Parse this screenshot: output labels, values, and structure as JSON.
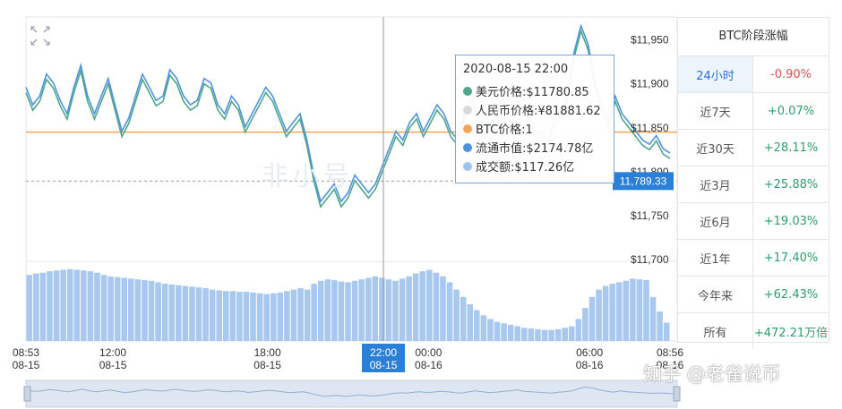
{
  "chart_data": {
    "type": "line",
    "series": [
      {
        "name": "美元价格",
        "color": "#4da888"
      },
      {
        "name": "人民币价格",
        "color": "#d0d0d0"
      },
      {
        "name": "BTC价格",
        "color": "#f5a55a"
      },
      {
        "name": "流通市值",
        "color": "#4f93e0"
      },
      {
        "name": "成交额",
        "color": "#9fc3ee"
      }
    ],
    "time_points": [
      "2020-08-15 08:53",
      "2020-08-15 12:00",
      "2020-08-15 18:00",
      "2020-08-15 22:00",
      "2020-08-16 00:00",
      "2020-08-16 06:00",
      "2020-08-16 08:56"
    ],
    "price_usd": [
      11890,
      11870,
      11880,
      11905,
      11895,
      11875,
      11860,
      11890,
      11915,
      11880,
      11860,
      11880,
      11900,
      11870,
      11840,
      11855,
      11880,
      11905,
      11890,
      11875,
      11880,
      11910,
      11900,
      11880,
      11870,
      11875,
      11900,
      11895,
      11870,
      11860,
      11880,
      11870,
      11845,
      11860,
      11875,
      11890,
      11880,
      11860,
      11840,
      11850,
      11860,
      11830,
      11790,
      11760,
      11770,
      11780,
      11760,
      11770,
      11790,
      11780,
      11770,
      11780,
      11800,
      11820,
      11840,
      11830,
      11850,
      11860,
      11840,
      11855,
      11870,
      11860,
      11840,
      11830,
      11860,
      11880,
      11860,
      11840,
      11850,
      11870,
      11880,
      11900,
      11870,
      11860,
      11850,
      11840,
      11830,
      11850,
      11860,
      11880,
      11930,
      11960,
      11940,
      11900,
      11870,
      11850,
      11880,
      11860,
      11850,
      11840,
      11830,
      11825,
      11835,
      11820,
      11815
    ],
    "usd_axis_ticks": [
      "$11,950",
      "$11,900",
      "$11,850",
      "$11,800",
      "$11,750",
      "$11,700"
    ],
    "usd_ylim": [
      11700,
      11970
    ],
    "reference_line_usd": 11845,
    "current_price_label": "11,789.33",
    "current_price_value": 11789.33,
    "volume": [
      0.9,
      0.92,
      0.93,
      0.95,
      0.96,
      0.97,
      0.98,
      0.97,
      0.96,
      0.95,
      0.93,
      0.9,
      0.88,
      0.87,
      0.86,
      0.85,
      0.84,
      0.83,
      0.82,
      0.8,
      0.78,
      0.77,
      0.76,
      0.75,
      0.74,
      0.73,
      0.72,
      0.7,
      0.69,
      0.68,
      0.68,
      0.67,
      0.67,
      0.66,
      0.65,
      0.64,
      0.65,
      0.66,
      0.68,
      0.7,
      0.72,
      0.7,
      0.78,
      0.82,
      0.84,
      0.83,
      0.81,
      0.8,
      0.82,
      0.84,
      0.86,
      0.88,
      0.86,
      0.84,
      0.82,
      0.85,
      0.88,
      0.92,
      0.95,
      0.97,
      0.93,
      0.88,
      0.8,
      0.7,
      0.6,
      0.5,
      0.42,
      0.35,
      0.3,
      0.26,
      0.24,
      0.22,
      0.2,
      0.18,
      0.17,
      0.16,
      0.15,
      0.15,
      0.16,
      0.18,
      0.2,
      0.3,
      0.45,
      0.6,
      0.7,
      0.75,
      0.78,
      0.8,
      0.82,
      0.85,
      0.84,
      0.83,
      0.6,
      0.4,
      0.25
    ],
    "x_labels": [
      {
        "time": "08:53",
        "date": "08-15"
      },
      {
        "time": "12:00",
        "date": "08-15"
      },
      {
        "time": "18:00",
        "date": "08-15"
      },
      {
        "time": "00:00",
        "date": "08-16"
      },
      {
        "time": "06:00",
        "date": "08-16"
      },
      {
        "time": "08:56",
        "date": "08-16"
      }
    ],
    "highlight_x_label": {
      "time": "22:00",
      "date": "08-15"
    },
    "cursor_fraction": 0.555
  },
  "tooltip": {
    "time": "2020-08-15 22:00",
    "rows": [
      {
        "label": "美元价格:$11780.85",
        "color": "#4da888"
      },
      {
        "label": "人民币价格:¥81881.62",
        "color": "#d8d8d8"
      },
      {
        "label": "BTC价格:1",
        "color": "#f5a55a"
      },
      {
        "label": "流通市值:$2174.78亿",
        "color": "#4f93e0"
      },
      {
        "label": "成交额:$117.26亿",
        "color": "#9fc3ee"
      }
    ]
  },
  "period_table": {
    "title": "BTC阶段涨幅",
    "rows": [
      {
        "name": "24小时",
        "value": "-0.90%",
        "dir": "down",
        "active": true
      },
      {
        "name": "近7天",
        "value": "+0.07%",
        "dir": "up"
      },
      {
        "name": "近30天",
        "value": "+28.11%",
        "dir": "up"
      },
      {
        "name": "近3月",
        "value": "+25.88%",
        "dir": "up"
      },
      {
        "name": "近6月",
        "value": "+19.03%",
        "dir": "up"
      },
      {
        "name": "近1年",
        "value": "+17.40%",
        "dir": "up"
      },
      {
        "name": "今年来",
        "value": "+62.43%",
        "dir": "up"
      },
      {
        "name": "所有",
        "value": "+472.21万倍",
        "dir": "up"
      }
    ]
  },
  "watermarks": {
    "site_logo": "非小号",
    "zhihu": "知乎 @老雀说币"
  },
  "colors": {
    "usd_line": "#4da888",
    "cap_line": "#4f93e0",
    "volume_bar": "#a8c8ef",
    "reference_line": "#f5a55a",
    "price_badge": "#2a7fd6",
    "cursor_badge": "#2a7fd6"
  }
}
